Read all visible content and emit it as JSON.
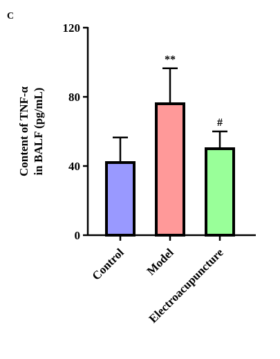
{
  "panel_label": "C",
  "chart_data": {
    "type": "bar",
    "y_label_lines": [
      "Content of TNF-α",
      "in BALF (pg/mL)"
    ],
    "categories": [
      "Control",
      "Model",
      "Electroacupuncture"
    ],
    "values": [
      42,
      76,
      50
    ],
    "errors": [
      14.5,
      20.5,
      10
    ],
    "colors": [
      "#9999ff",
      "#ff9999",
      "#99ff99"
    ],
    "annotations": [
      null,
      "**",
      "#"
    ],
    "ylim": [
      0,
      120
    ],
    "yticks": [
      0,
      40,
      80,
      120
    ]
  }
}
